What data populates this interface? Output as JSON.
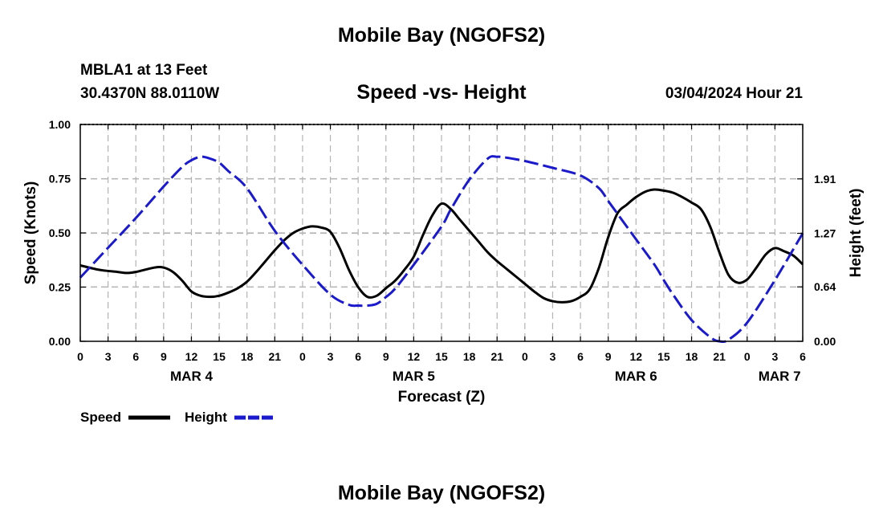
{
  "page": {
    "title_top": "Mobile Bay (NGOFS2)",
    "title_bottom": "Mobile Bay (NGOFS2)",
    "station": "MBLA1 at 13 Feet",
    "coords": "30.4370N  88.0110W",
    "datetime": "03/04/2024 Hour 21"
  },
  "colors": {
    "speed": "#000000",
    "height": "#1a1acc",
    "grid": "#b4b4b4"
  },
  "chart_data": {
    "type": "line",
    "title": "Speed -vs- Height",
    "xlabel": "Forecast (Z)",
    "ylabel": "Speed (Knots)",
    "y2label": "Height (feet)",
    "x_range_hours": [
      0,
      78
    ],
    "ylim": [
      0,
      1.0
    ],
    "y2lim": [
      0.0,
      2.55
    ],
    "y_ticks": [
      0.0,
      0.25,
      0.5,
      0.75,
      1.0
    ],
    "y_tick_labels": [
      "0.00",
      "0.25",
      "0.50",
      "0.75",
      "1.00"
    ],
    "y2_ticks": [
      0.0,
      0.64,
      1.27,
      1.91
    ],
    "y2_tick_labels": [
      "0.00",
      "0.64",
      "1.27",
      "1.91"
    ],
    "x_ticks": [
      0,
      3,
      6,
      9,
      12,
      15,
      18,
      21,
      24,
      27,
      30,
      33,
      36,
      39,
      42,
      45,
      48,
      51,
      54,
      57,
      60,
      63,
      66,
      69,
      72,
      75,
      78
    ],
    "x_tick_labels": [
      "0",
      "3",
      "6",
      "9",
      "12",
      "15",
      "18",
      "21",
      "0",
      "3",
      "6",
      "9",
      "12",
      "15",
      "18",
      "21",
      "0",
      "3",
      "6",
      "9",
      "12",
      "15",
      "18",
      "21",
      "0",
      "3",
      "6"
    ],
    "day_labels": [
      {
        "hour": 12,
        "label": "MAR 4"
      },
      {
        "hour": 36,
        "label": "MAR 5"
      },
      {
        "hour": 60,
        "label": "MAR 6"
      },
      {
        "hour": 75.5,
        "label": "MAR 7"
      }
    ],
    "grid": true,
    "series": [
      {
        "name": "Speed",
        "axis": "left",
        "style": "solid",
        "x": [
          0,
          2,
          4,
          5,
          6,
          8,
          9,
          10,
          11,
          12,
          13,
          14,
          15,
          16,
          17,
          18,
          19,
          20,
          21,
          22,
          23,
          24,
          25,
          26,
          27,
          28,
          29,
          30,
          31,
          32,
          33,
          34,
          35,
          36,
          37,
          38,
          39,
          40,
          41,
          42,
          43,
          44,
          45,
          46,
          47,
          48,
          49,
          50,
          51,
          52,
          53,
          54,
          55,
          56,
          57,
          58,
          59,
          60,
          61,
          62,
          63,
          64,
          65,
          66,
          67,
          68,
          69,
          70,
          71,
          72,
          73,
          74,
          75,
          76,
          77,
          78
        ],
        "values": [
          0.35,
          0.33,
          0.32,
          0.315,
          0.32,
          0.34,
          0.34,
          0.32,
          0.28,
          0.23,
          0.21,
          0.205,
          0.21,
          0.225,
          0.245,
          0.275,
          0.32,
          0.37,
          0.42,
          0.465,
          0.5,
          0.52,
          0.53,
          0.525,
          0.505,
          0.43,
          0.33,
          0.25,
          0.205,
          0.21,
          0.245,
          0.28,
          0.33,
          0.39,
          0.49,
          0.58,
          0.635,
          0.61,
          0.56,
          0.51,
          0.46,
          0.41,
          0.37,
          0.335,
          0.3,
          0.265,
          0.23,
          0.2,
          0.185,
          0.18,
          0.185,
          0.205,
          0.24,
          0.34,
          0.48,
          0.59,
          0.63,
          0.665,
          0.69,
          0.7,
          0.695,
          0.685,
          0.665,
          0.64,
          0.61,
          0.53,
          0.41,
          0.305,
          0.27,
          0.285,
          0.34,
          0.4,
          0.43,
          0.415,
          0.395,
          0.355
        ]
      },
      {
        "name": "Height",
        "axis": "right",
        "style": "dashed",
        "x": [
          0,
          3,
          6,
          9,
          11,
          12,
          13,
          14,
          15,
          16,
          18,
          21,
          24,
          27,
          29,
          30,
          31,
          32,
          33,
          34,
          36,
          39,
          40,
          42,
          44,
          45,
          46,
          48,
          51,
          54,
          56,
          57,
          58,
          60,
          62,
          63,
          64,
          66,
          68,
          69,
          70,
          72,
          75,
          78
        ],
        "values": [
          0.75,
          1.1,
          1.45,
          1.82,
          2.05,
          2.13,
          2.17,
          2.15,
          2.1,
          2.0,
          1.8,
          1.3,
          0.9,
          0.55,
          0.43,
          0.42,
          0.42,
          0.44,
          0.52,
          0.62,
          0.9,
          1.35,
          1.55,
          1.9,
          2.15,
          2.17,
          2.16,
          2.12,
          2.04,
          1.95,
          1.8,
          1.65,
          1.5,
          1.2,
          0.9,
          0.72,
          0.55,
          0.25,
          0.05,
          0.0,
          0.02,
          0.22,
          0.72,
          1.27
        ]
      }
    ],
    "legend": [
      {
        "label": "Speed",
        "style": "solid"
      },
      {
        "label": "Height",
        "style": "dashed"
      }
    ]
  }
}
